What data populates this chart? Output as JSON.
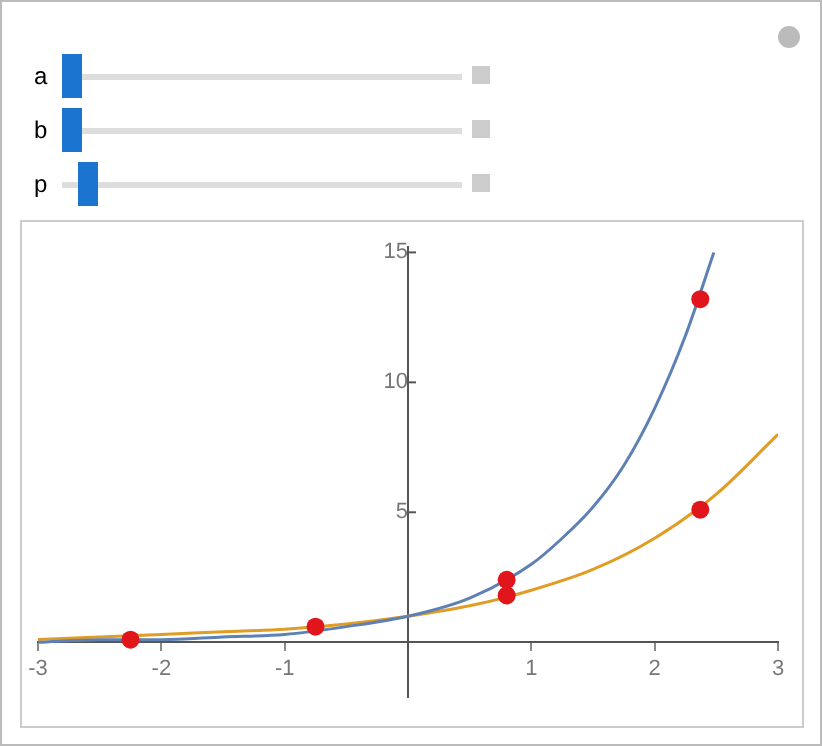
{
  "chart_data": {
    "type": "line",
    "annotations": [
      "a",
      "b",
      "p"
    ],
    "xlim": [
      -3,
      3
    ],
    "ylim": [
      -2.1,
      15.2
    ],
    "xticks": [
      -3,
      -2,
      -1,
      1,
      2,
      3
    ],
    "yticks": [
      5,
      10,
      15
    ],
    "grid": false,
    "legend": false,
    "marker": "none",
    "series": [
      {
        "color": "#5e81b5",
        "x": [
          -3,
          -2.5,
          -2,
          -1.5,
          -1,
          -0.5,
          0,
          0.5,
          1,
          1.25,
          1.5,
          1.75,
          2,
          2.25,
          2.48
        ],
        "values": [
          0,
          0.1,
          0.1,
          0.2,
          0.3,
          0.6,
          1,
          1.7,
          3,
          4,
          5.2,
          6.8,
          9,
          11.8,
          15
        ]
      },
      {
        "color": "#e19c24",
        "x": [
          -3,
          -2.5,
          -2,
          -1.5,
          -1,
          -0.5,
          0,
          0.5,
          1,
          1.5,
          2,
          2.5,
          3
        ],
        "values": [
          0.1,
          0.2,
          0.3,
          0.4,
          0.5,
          0.7,
          1,
          1.4,
          2,
          2.8,
          4,
          5.7,
          8
        ]
      },
      {
        "type": "scatter",
        "color": "#e0161c",
        "marker": "circle",
        "x": [
          -2.25,
          -0.75,
          0.8,
          0.8,
          2.37,
          2.37
        ],
        "values": [
          0.1,
          0.6,
          2.4,
          1.8,
          13.2,
          5.1
        ]
      }
    ]
  }
}
